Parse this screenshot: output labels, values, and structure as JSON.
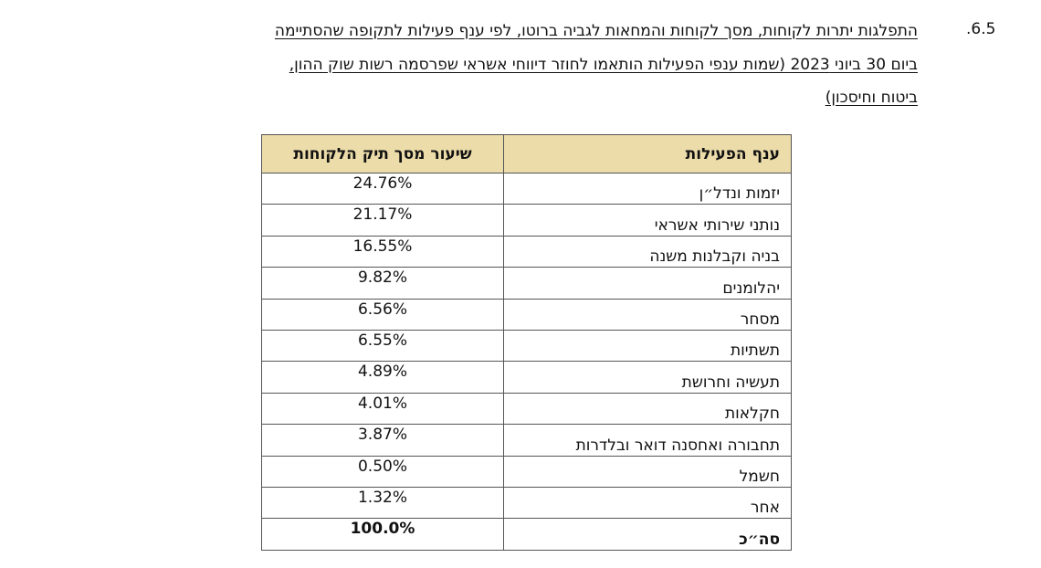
{
  "section": {
    "number": ".6.5",
    "heading_lines": [
      "התפלגות יתרות לקוחות, מסך לקוחות והמחאות לגביה ברוטו, לפי ענף פעילות לתקופה שהסתיימה",
      "ביום 30 ביוני 2023 (שמות ענפי הפעילות הותאמו לחוזר דיווחי אשראי שפרסמה רשות שוק ההון,",
      "ביטוח וחיסכון)"
    ]
  },
  "table": {
    "headers": [
      "ענף הפעילות",
      "שיעור מסך תיק הלקוחות"
    ],
    "rows": [
      [
        "יזמות ונדל״ן",
        "24.76%"
      ],
      [
        "נותני שירותי אשראי",
        "21.17%"
      ],
      [
        "בניה וקבלנות משנה",
        "16.55%"
      ],
      [
        "יהלומנים",
        "9.82%"
      ],
      [
        "מסחר",
        "6.56%"
      ],
      [
        "תשתיות",
        "6.55%"
      ],
      [
        "תעשיה וחרושת",
        "4.89%"
      ],
      [
        "חקלאות",
        "4.01%"
      ],
      [
        "תחבורה ואחסנה דואר ובלדרות",
        "3.87%"
      ],
      [
        "חשמל",
        "0.50%"
      ],
      [
        "אחר",
        "1.32%"
      ]
    ],
    "total": [
      "סה״כ",
      "100.0%"
    ]
  }
}
